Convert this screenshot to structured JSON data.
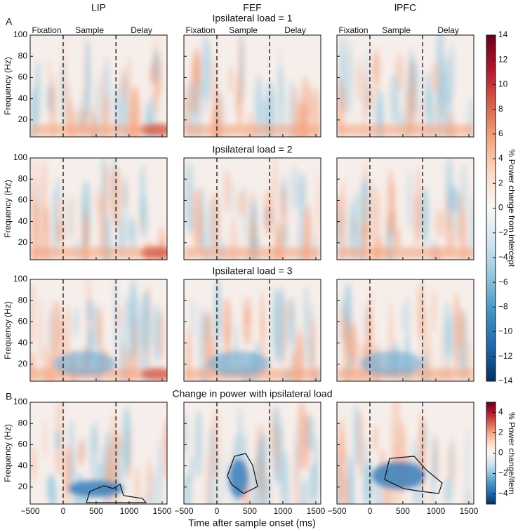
{
  "figure": {
    "panel_labels": [
      "A",
      "B"
    ],
    "columns": [
      "LIP",
      "FEF",
      "lPFC"
    ],
    "rows": [
      {
        "title": "Ipsilateral load = 1"
      },
      {
        "title": "Ipsilateral load = 2"
      },
      {
        "title": "Ipsilateral load = 3"
      },
      {
        "title": "Change in power with ipsilateral load"
      }
    ],
    "epochs": [
      "Fixation",
      "Sample",
      "Delay"
    ],
    "y_label": "Frequency (Hz)",
    "x_label": "Time after sample onset (ms)",
    "xlim": [
      -500,
      1575
    ],
    "xticks": [
      {
        "value": -500,
        "label": "−500"
      },
      0,
      500,
      1000,
      1500
    ],
    "ylim": [
      4,
      100
    ],
    "yticks": [
      20,
      40,
      60,
      80,
      100
    ],
    "events": [
      0,
      800
    ],
    "colorbars": [
      {
        "label": "% Power change from intercept",
        "lim": [
          -14,
          14
        ],
        "ticks": [
          14,
          12,
          10,
          8,
          6,
          4,
          2,
          0,
          {
            "value": -2,
            "label": "−2"
          },
          {
            "value": -4,
            "label": "−4"
          },
          {
            "value": -6,
            "label": "−6"
          },
          {
            "value": -8,
            "label": "−8"
          },
          {
            "value": -10,
            "label": "−10"
          },
          {
            "value": -12,
            "label": "−12"
          },
          {
            "value": -14,
            "label": "−14"
          }
        ]
      },
      {
        "label": "% Power change/item",
        "lim": [
          -5,
          5
        ],
        "ticks": [
          4,
          2,
          0,
          {
            "value": -2,
            "label": "−2"
          },
          {
            "value": -4,
            "label": "−4"
          }
        ]
      }
    ]
  }
}
